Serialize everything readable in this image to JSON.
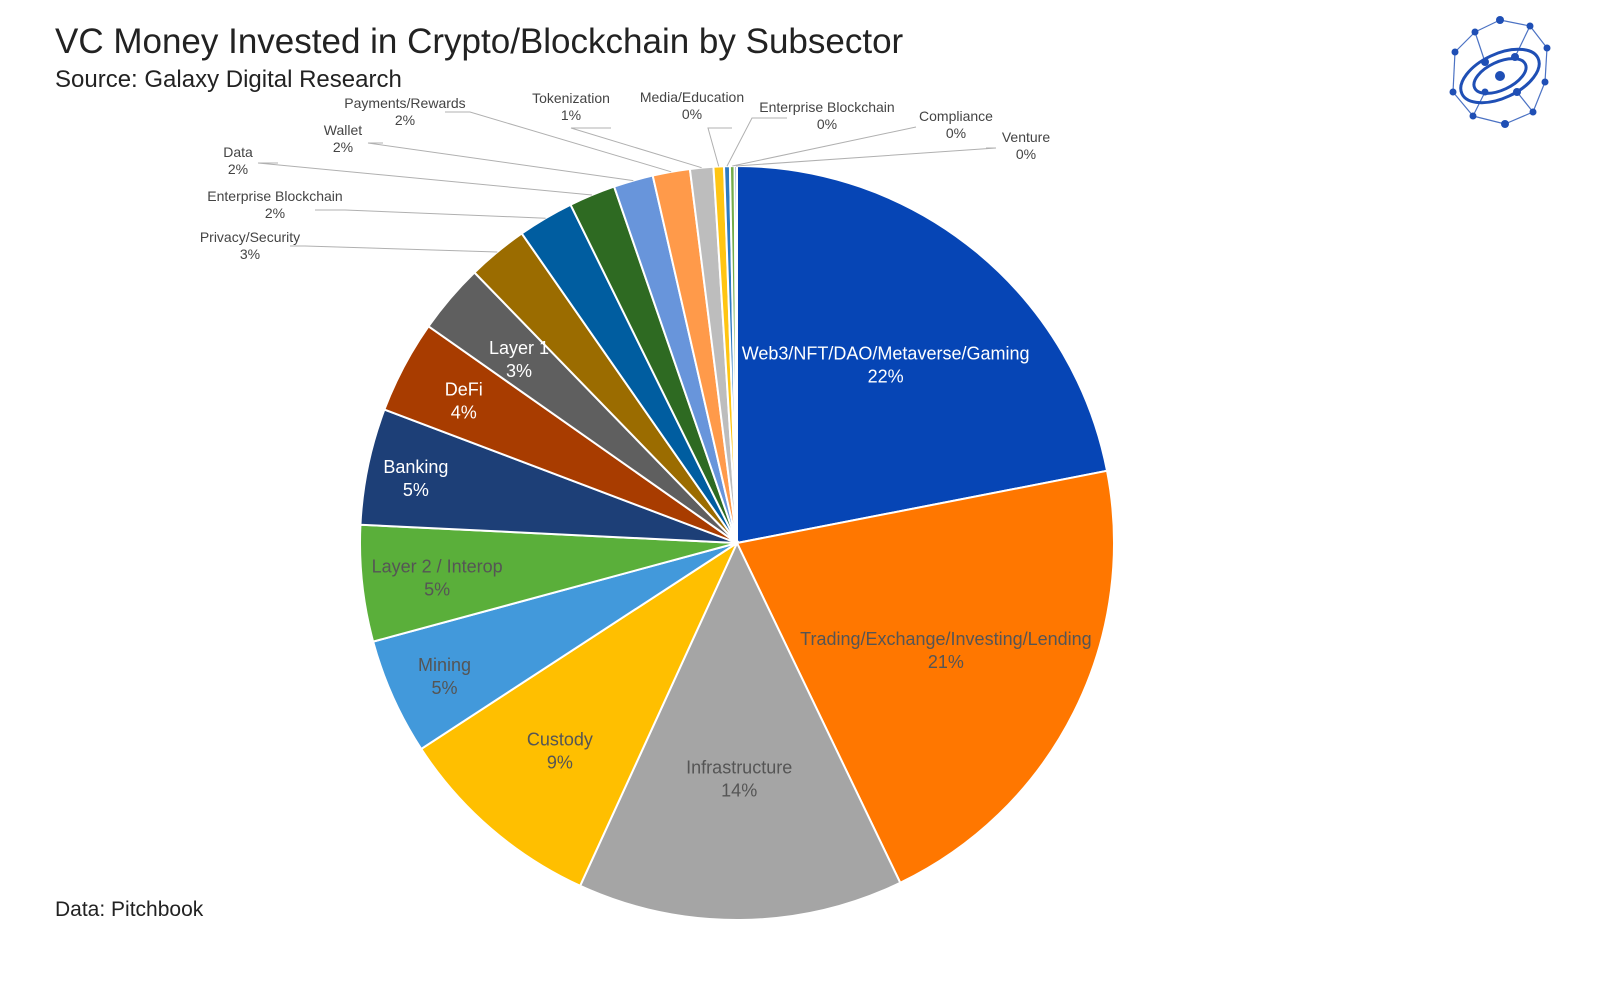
{
  "header": {
    "title": "VC Money Invested in Crypto/Blockchain by Subsector",
    "subtitle": "Source: Galaxy Digital Research"
  },
  "footer": {
    "note": "Data: Pitchbook"
  },
  "logo": {
    "icon": "network-globe-icon",
    "color": "#1f4fb5"
  },
  "chart_data": {
    "type": "pie",
    "start_angle_deg": 0,
    "direction": "clockwise",
    "slices": [
      {
        "label": "Web3/NFT/DAO/Metaverse/Gaming",
        "value": 22,
        "display": "22%",
        "color": "#0645b5",
        "text_color": "#ffffff"
      },
      {
        "label": "Trading/Exchange/Investing/Lending",
        "value": 21,
        "display": "21%",
        "color": "#ff7700",
        "text_color": "#555555"
      },
      {
        "label": "Infrastructure",
        "value": 14,
        "display": "14%",
        "color": "#a5a5a5",
        "text_color": "#555555"
      },
      {
        "label": "Custody",
        "value": 9,
        "display": "9%",
        "color": "#ffbf00",
        "text_color": "#555555"
      },
      {
        "label": "Mining",
        "value": 5,
        "display": "5%",
        "color": "#4299db",
        "text_color": "#555555"
      },
      {
        "label": "Layer 2 / Interop",
        "value": 5,
        "display": "5%",
        "color": "#5aaf3a",
        "text_color": "#555555"
      },
      {
        "label": "Banking",
        "value": 5,
        "display": "5%",
        "color": "#1d3f77",
        "text_color": "#ffffff"
      },
      {
        "label": "DeFi",
        "value": 4,
        "display": "4%",
        "color": "#a83c00",
        "text_color": "#ffffff"
      },
      {
        "label": "Layer 1",
        "value": 3,
        "display": "3%",
        "color": "#5f5f5f",
        "text_color": "#ffffff"
      },
      {
        "label": "Privacy/Security",
        "value": 2.6,
        "display": "3%",
        "color": "#9b6c00",
        "text_color": "#444444"
      },
      {
        "label": "Enterprise Blockchain",
        "value": 2.4,
        "display": "2%",
        "color": "#005da0",
        "text_color": "#444444"
      },
      {
        "label": "Data",
        "value": 2,
        "display": "2%",
        "color": "#2e6a22",
        "text_color": "#444444"
      },
      {
        "label": "Wallet",
        "value": 1.7,
        "display": "2%",
        "color": "#6895db",
        "text_color": "#444444"
      },
      {
        "label": "Payments/Rewards",
        "value": 1.6,
        "display": "2%",
        "color": "#ff9a4a",
        "text_color": "#444444"
      },
      {
        "label": "Tokenization",
        "value": 1,
        "display": "1%",
        "color": "#bdbdbd",
        "text_color": "#444444"
      },
      {
        "label": "Media/Education",
        "value": 0.45,
        "display": "0%",
        "color": "#ffc512",
        "text_color": "#444444"
      },
      {
        "label": "Enterprise Blockchain",
        "value": 0.25,
        "display": "0%",
        "color": "#2d7bc2",
        "text_color": "#444444"
      },
      {
        "label": "Compliance",
        "value": 0.2,
        "display": "0%",
        "color": "#74ad4b",
        "text_color": "#444444"
      },
      {
        "label": "Venture",
        "value": 0.1,
        "display": "0%",
        "color": "#2a4e8a",
        "text_color": "#444444"
      }
    ]
  }
}
